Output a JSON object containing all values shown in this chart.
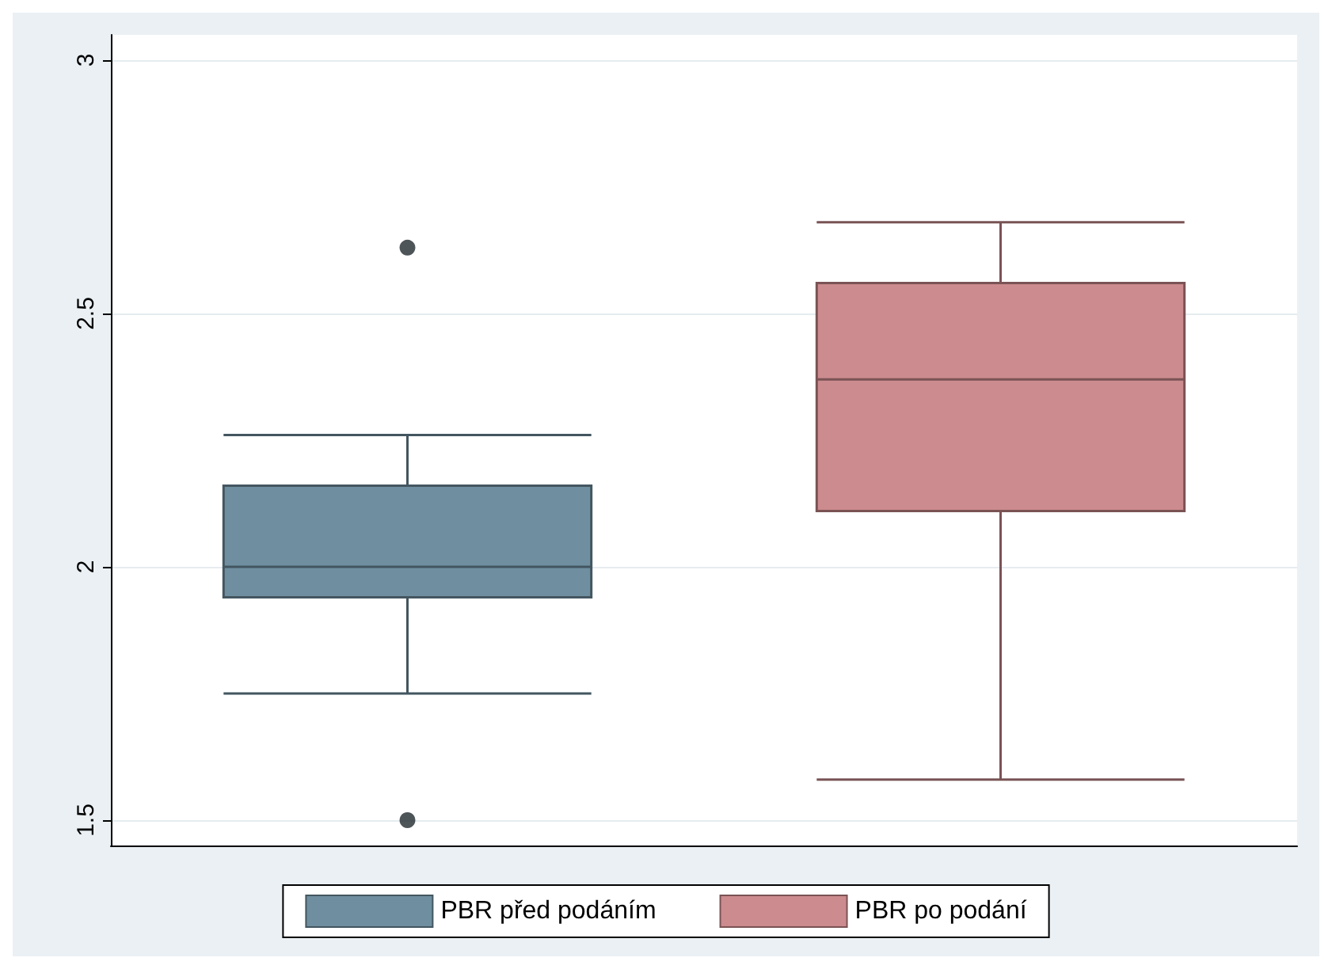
{
  "chart_data": {
    "type": "box",
    "categories": [
      null,
      null
    ],
    "series": [
      {
        "name": "PBR před podáním",
        "color": "#6f8fa0",
        "boxes": [
          {
            "low": 1.75,
            "q1": 1.94,
            "median": 2.0,
            "q3": 2.16,
            "high": 2.26,
            "outliers": [
              2.63,
              1.5
            ]
          },
          null
        ]
      },
      {
        "name": "PBR po podání",
        "color": "#cc8b8e",
        "boxes": [
          null,
          {
            "low": 1.58,
            "q1": 2.11,
            "median": 2.37,
            "q3": 2.56,
            "high": 2.68
          }
        ]
      }
    ],
    "ylim": [
      1.45,
      3.05
    ],
    "yticks": [
      1.5,
      2,
      2.5,
      3
    ],
    "grid": "y",
    "legend": "bottom"
  }
}
